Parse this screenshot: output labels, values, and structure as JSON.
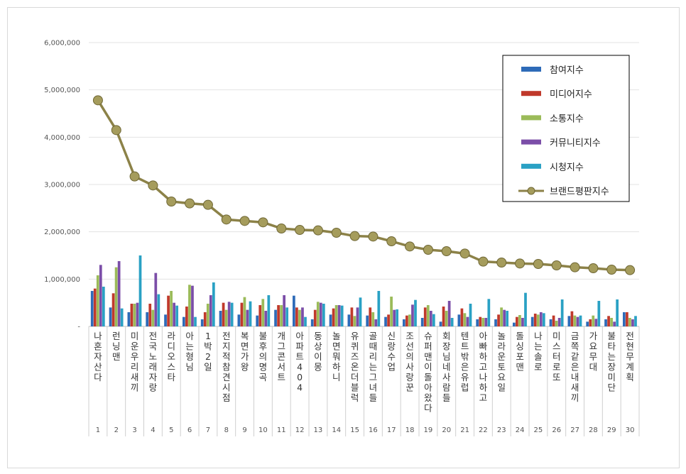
{
  "chart_data": {
    "type": "bar",
    "title": "",
    "xlabel": "",
    "ylabel": "",
    "ylim": [
      0,
      6000000
    ],
    "yticks": [
      "-",
      "1,000,000",
      "2,000,000",
      "3,000,000",
      "4,000,000",
      "5,000,000",
      "6,000,000"
    ],
    "grid": true,
    "legend_position": "top-right",
    "ranks": [
      "1",
      "2",
      "3",
      "4",
      "5",
      "6",
      "7",
      "8",
      "9",
      "10",
      "11",
      "12",
      "13",
      "14",
      "15",
      "16",
      "17",
      "18",
      "19",
      "20",
      "21",
      "22",
      "23",
      "24",
      "25",
      "26",
      "27",
      "28",
      "29",
      "30"
    ],
    "categories": [
      "나혼자산다",
      "런닝맨",
      "미운우리새끼",
      "전국노래자랑",
      "라디오스타",
      "아는형님",
      "1박 2일",
      "전지적 참견 시점",
      "복면가왕",
      "불후의 명곡",
      "개그콘서트",
      "아파트404",
      "동상이몽",
      "놀면 뭐하니",
      "유퀴즈온더블럭",
      "골때리는그녀들",
      "신랑수업",
      "조선의 사랑꾼",
      "슈퍼맨이 돌아왔다",
      "회장님네 사람들",
      "텐트 밖은 유럽",
      "아빠하고 나하고",
      "놀라운토요일",
      "돌싱포맨",
      "나는솔로",
      "미스터로또",
      "금쪽같은 내새끼",
      "가요무대",
      "불타는장미단",
      "전현무계획"
    ],
    "series": [
      {
        "name": "참여지수",
        "color": "#2e6bb8",
        "type": "bar",
        "values": [
          750000,
          400000,
          300000,
          300000,
          250000,
          200000,
          150000,
          330000,
          250000,
          230000,
          350000,
          650000,
          150000,
          250000,
          250000,
          230000,
          200000,
          150000,
          180000,
          100000,
          250000,
          150000,
          150000,
          80000,
          200000,
          150000,
          220000,
          100000,
          150000,
          300000
        ]
      },
      {
        "name": "미디어지수",
        "color": "#c0392b",
        "type": "bar",
        "values": [
          800000,
          700000,
          480000,
          480000,
          650000,
          420000,
          300000,
          500000,
          500000,
          450000,
          450000,
          400000,
          350000,
          380000,
          400000,
          400000,
          250000,
          230000,
          400000,
          420000,
          380000,
          200000,
          250000,
          200000,
          270000,
          230000,
          320000,
          150000,
          220000,
          300000
        ]
      },
      {
        "name": "소통지수",
        "color": "#9bbb59",
        "type": "bar",
        "values": [
          1080000,
          1250000,
          480000,
          350000,
          750000,
          880000,
          480000,
          350000,
          620000,
          580000,
          450000,
          350000,
          520000,
          450000,
          220000,
          300000,
          630000,
          250000,
          450000,
          330000,
          280000,
          180000,
          400000,
          240000,
          250000,
          120000,
          230000,
          230000,
          180000,
          180000
        ]
      },
      {
        "name": "커뮤니티지수",
        "color": "#7b4ea8",
        "type": "bar",
        "values": [
          1300000,
          1380000,
          500000,
          1130000,
          500000,
          860000,
          660000,
          520000,
          350000,
          330000,
          660000,
          400000,
          500000,
          450000,
          400000,
          150000,
          350000,
          460000,
          330000,
          540000,
          200000,
          180000,
          350000,
          180000,
          300000,
          180000,
          200000,
          160000,
          100000,
          150000
        ]
      },
      {
        "name": "시청지수",
        "color": "#2aa1c4",
        "type": "bar",
        "values": [
          840000,
          380000,
          1500000,
          680000,
          440000,
          200000,
          930000,
          500000,
          530000,
          660000,
          400000,
          200000,
          480000,
          440000,
          610000,
          750000,
          360000,
          560000,
          260000,
          180000,
          480000,
          580000,
          330000,
          710000,
          280000,
          570000,
          230000,
          540000,
          570000,
          220000
        ]
      },
      {
        "name": "브랜드평판지수",
        "color": "#8c8248",
        "type": "line",
        "values": [
          4780000,
          4150000,
          3170000,
          2980000,
          2640000,
          2600000,
          2570000,
          2260000,
          2230000,
          2200000,
          2070000,
          2040000,
          2030000,
          1980000,
          1910000,
          1900000,
          1800000,
          1690000,
          1620000,
          1590000,
          1540000,
          1370000,
          1350000,
          1330000,
          1320000,
          1290000,
          1250000,
          1230000,
          1200000,
          1190000
        ]
      }
    ]
  }
}
